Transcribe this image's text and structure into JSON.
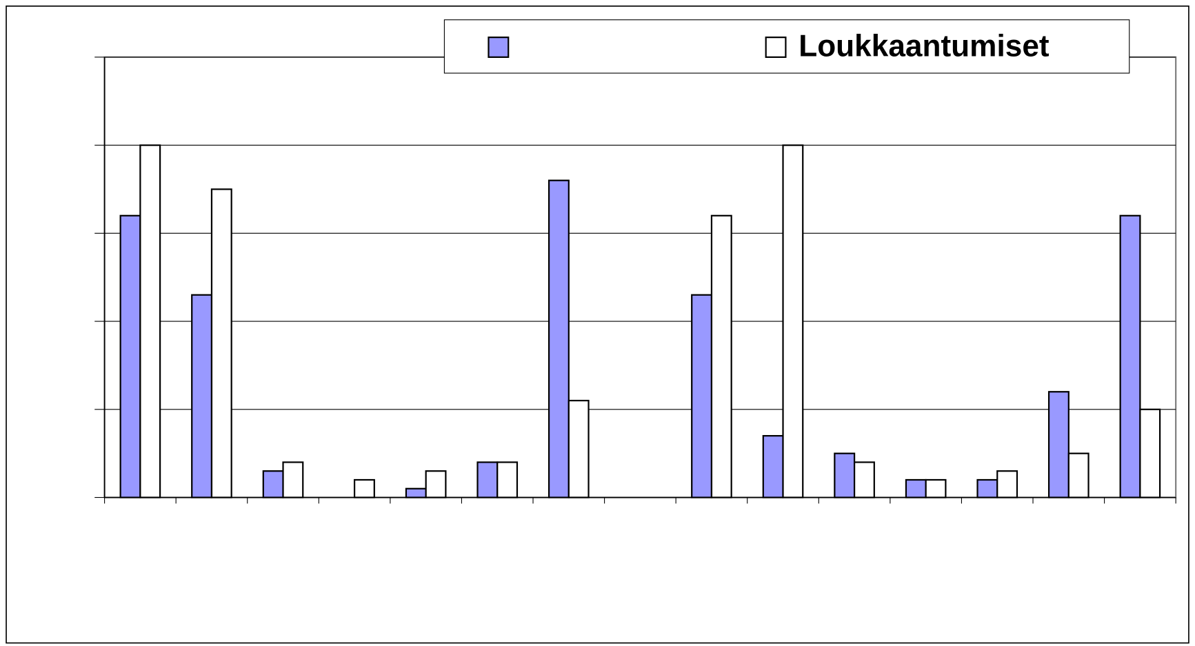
{
  "chart_data": {
    "type": "bar",
    "categories": [
      null,
      null,
      null,
      null,
      null,
      null,
      null,
      null,
      null,
      null,
      null,
      null,
      null,
      null,
      null
    ],
    "series": [
      {
        "name": null,
        "color": "#9999ff",
        "values": [
          32,
          23,
          3,
          0,
          1,
          4,
          36,
          0,
          23,
          7,
          5,
          2,
          2,
          12,
          32
        ]
      },
      {
        "name": "Loukkaantumiset",
        "color": "#ffffff",
        "values": [
          40,
          35,
          4,
          2,
          3,
          4,
          11,
          0,
          32,
          40,
          4,
          2,
          3,
          5,
          10
        ]
      }
    ],
    "ylim": [
      0,
      50
    ],
    "yticks": [
      0,
      10,
      20,
      30,
      40,
      50
    ],
    "grid": true,
    "legend": "top"
  }
}
